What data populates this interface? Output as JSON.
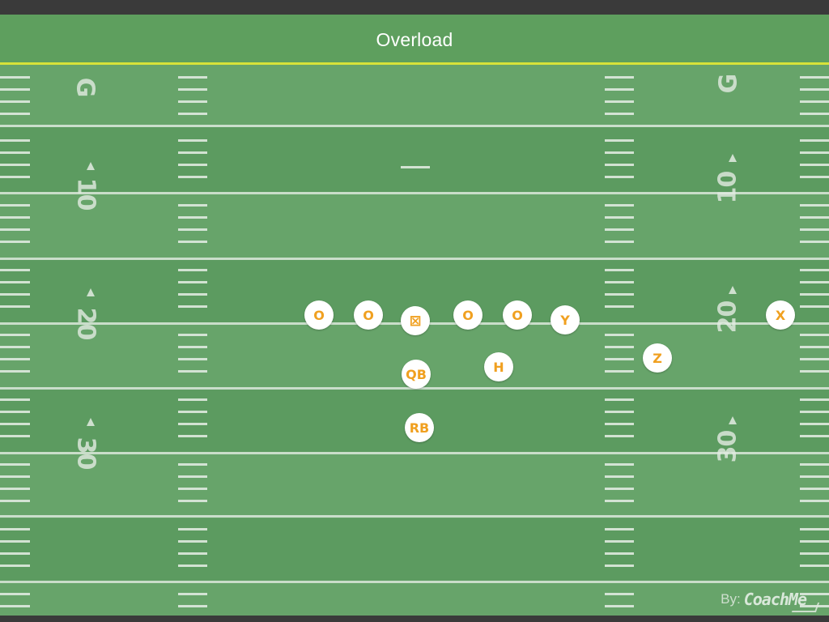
{
  "header": {
    "title": "Overload"
  },
  "field": {
    "left_numbers": [
      "G",
      "10",
      "20",
      "30"
    ],
    "right_numbers": [
      "G",
      "10",
      "20",
      "30"
    ]
  },
  "players": [
    {
      "id": "o1",
      "label": "O"
    },
    {
      "id": "o2",
      "label": "O"
    },
    {
      "id": "c",
      "label": "⊠"
    },
    {
      "id": "o3",
      "label": "O"
    },
    {
      "id": "o4",
      "label": "O"
    },
    {
      "id": "y",
      "label": "Y"
    },
    {
      "id": "x",
      "label": "X"
    },
    {
      "id": "qb",
      "label": "QB"
    },
    {
      "id": "h",
      "label": "H"
    },
    {
      "id": "z",
      "label": "Z"
    },
    {
      "id": "rb",
      "label": "RB"
    }
  ],
  "credit": {
    "prefix": "By:",
    "brand": "CoachMe"
  },
  "colors": {
    "field": "#62a066",
    "header": "#5e9f5e",
    "goal_line": "#d7e23a",
    "player_fill": "#ffffff",
    "player_text": "#f0a020"
  }
}
